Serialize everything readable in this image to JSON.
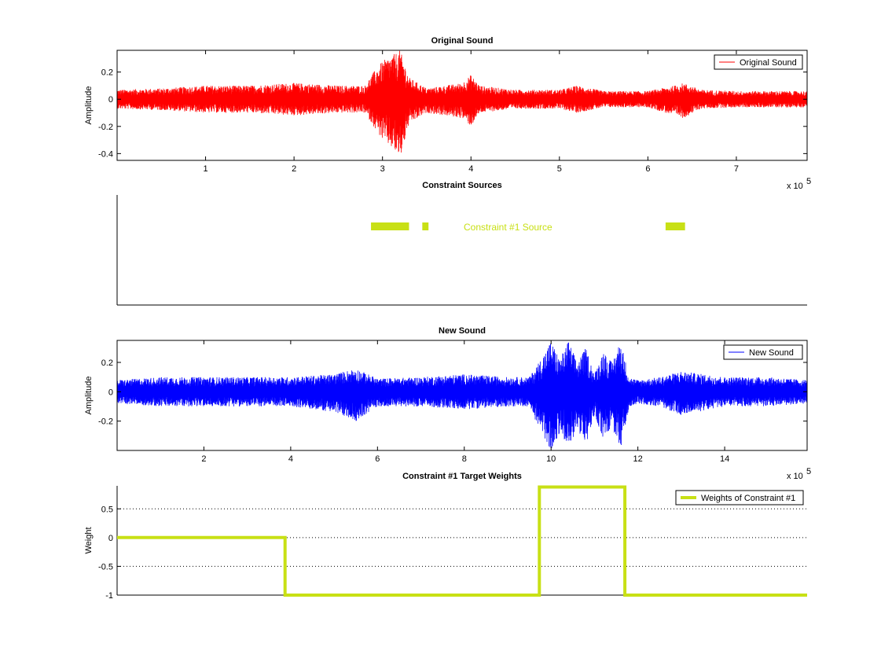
{
  "chart_data": [
    {
      "type": "line",
      "title": "Original Sound",
      "xlabel": "",
      "ylabel": "Amplitude",
      "x_exponent_label": "x 10",
      "x_exponent": "5",
      "xlim": [
        0,
        7.8
      ],
      "ylim": [
        -0.45,
        0.36
      ],
      "xticks": [
        1,
        2,
        3,
        4,
        5,
        6,
        7
      ],
      "yticks": [
        0.2,
        0,
        -0.2,
        -0.4
      ],
      "yticks_labels": [
        "0.2",
        "0",
        "-0.2",
        "-0.4"
      ],
      "series": [
        {
          "name": "Original Sound",
          "color": "#ff0000",
          "envelope_x": [
            0,
            0.5,
            1.0,
            1.5,
            2.0,
            2.5,
            2.8,
            2.9,
            3.0,
            3.1,
            3.2,
            3.3,
            3.5,
            3.7,
            3.9,
            4.0,
            4.1,
            4.5,
            5.0,
            5.2,
            5.5,
            6.0,
            6.3,
            6.4,
            6.6,
            7.0,
            7.5,
            7.8
          ],
          "envelope_upper": [
            0.07,
            0.08,
            0.1,
            0.1,
            0.12,
            0.1,
            0.1,
            0.2,
            0.28,
            0.32,
            0.36,
            0.16,
            0.08,
            0.1,
            0.12,
            0.18,
            0.1,
            0.07,
            0.07,
            0.1,
            0.06,
            0.06,
            0.1,
            0.12,
            0.07,
            0.06,
            0.06,
            0.06
          ],
          "envelope_lower": [
            -0.07,
            -0.08,
            -0.1,
            -0.1,
            -0.12,
            -0.1,
            -0.1,
            -0.2,
            -0.3,
            -0.36,
            -0.44,
            -0.18,
            -0.1,
            -0.12,
            -0.14,
            -0.2,
            -0.1,
            -0.07,
            -0.07,
            -0.1,
            -0.06,
            -0.06,
            -0.12,
            -0.14,
            -0.07,
            -0.06,
            -0.06,
            -0.06
          ]
        }
      ],
      "legend": "top-right",
      "grid": false
    },
    {
      "type": "bar",
      "title": "Constraint Sources",
      "annotation": "Constraint #1 Source",
      "color": "#c8e015",
      "segments_x": [
        [
          2.87,
          3.3
        ],
        [
          3.45,
          3.52
        ],
        [
          6.2,
          6.42
        ]
      ],
      "xlim": [
        0,
        7.8
      ],
      "grid": false
    },
    {
      "type": "line",
      "title": "New Sound",
      "xlabel": "",
      "ylabel": "Amplitude",
      "x_exponent_label": "x 10",
      "x_exponent": "5",
      "xlim": [
        0,
        15.9
      ],
      "ylim": [
        -0.4,
        0.35
      ],
      "xticks": [
        2,
        4,
        6,
        8,
        10,
        12,
        14
      ],
      "yticks": [
        0.2,
        0,
        -0.2
      ],
      "yticks_labels": [
        "0.2",
        "0",
        "-0.2"
      ],
      "series": [
        {
          "name": "New Sound",
          "color": "#0000ff",
          "envelope_x": [
            0,
            1,
            2,
            3,
            4,
            5,
            5.5,
            6,
            7,
            8,
            9,
            9.5,
            9.8,
            10,
            10.2,
            10.4,
            10.6,
            10.8,
            11,
            11.2,
            11.4,
            11.6,
            11.8,
            12,
            12.5,
            13,
            14,
            15,
            15.9
          ],
          "envelope_upper": [
            0.08,
            0.1,
            0.1,
            0.1,
            0.1,
            0.12,
            0.16,
            0.09,
            0.1,
            0.12,
            0.1,
            0.1,
            0.24,
            0.35,
            0.22,
            0.35,
            0.2,
            0.3,
            0.12,
            0.28,
            0.2,
            0.35,
            0.1,
            0.08,
            0.1,
            0.14,
            0.1,
            0.1,
            0.08
          ],
          "envelope_lower": [
            -0.08,
            -0.1,
            -0.1,
            -0.1,
            -0.1,
            -0.14,
            -0.2,
            -0.1,
            -0.1,
            -0.12,
            -0.1,
            -0.1,
            -0.3,
            -0.4,
            -0.28,
            -0.4,
            -0.24,
            -0.38,
            -0.16,
            -0.32,
            -0.24,
            -0.4,
            -0.1,
            -0.08,
            -0.1,
            -0.16,
            -0.1,
            -0.1,
            -0.08
          ]
        }
      ],
      "legend": "top-right",
      "grid": false
    },
    {
      "type": "line",
      "title": "Constraint #1 Target Weights",
      "xlabel": "",
      "ylabel": "Weight",
      "x_exponent_label": "x 10",
      "x_exponent": "5",
      "xlim": [
        0,
        15.9
      ],
      "ylim": [
        -1,
        0.9
      ],
      "yticks": [
        0.5,
        0,
        -0.5,
        -1
      ],
      "yticks_labels": [
        "0.5",
        "0",
        "-0.5",
        "-1"
      ],
      "grid": true,
      "series": [
        {
          "name": "Weights of Constraint #1",
          "color": "#c8e015",
          "x": [
            0,
            3.87,
            3.87,
            9.73,
            9.73,
            11.7,
            11.7,
            15.9
          ],
          "y": [
            0,
            0,
            -1,
            -1,
            0.88,
            0.88,
            -1,
            -1
          ]
        }
      ],
      "legend": "top-right"
    }
  ]
}
